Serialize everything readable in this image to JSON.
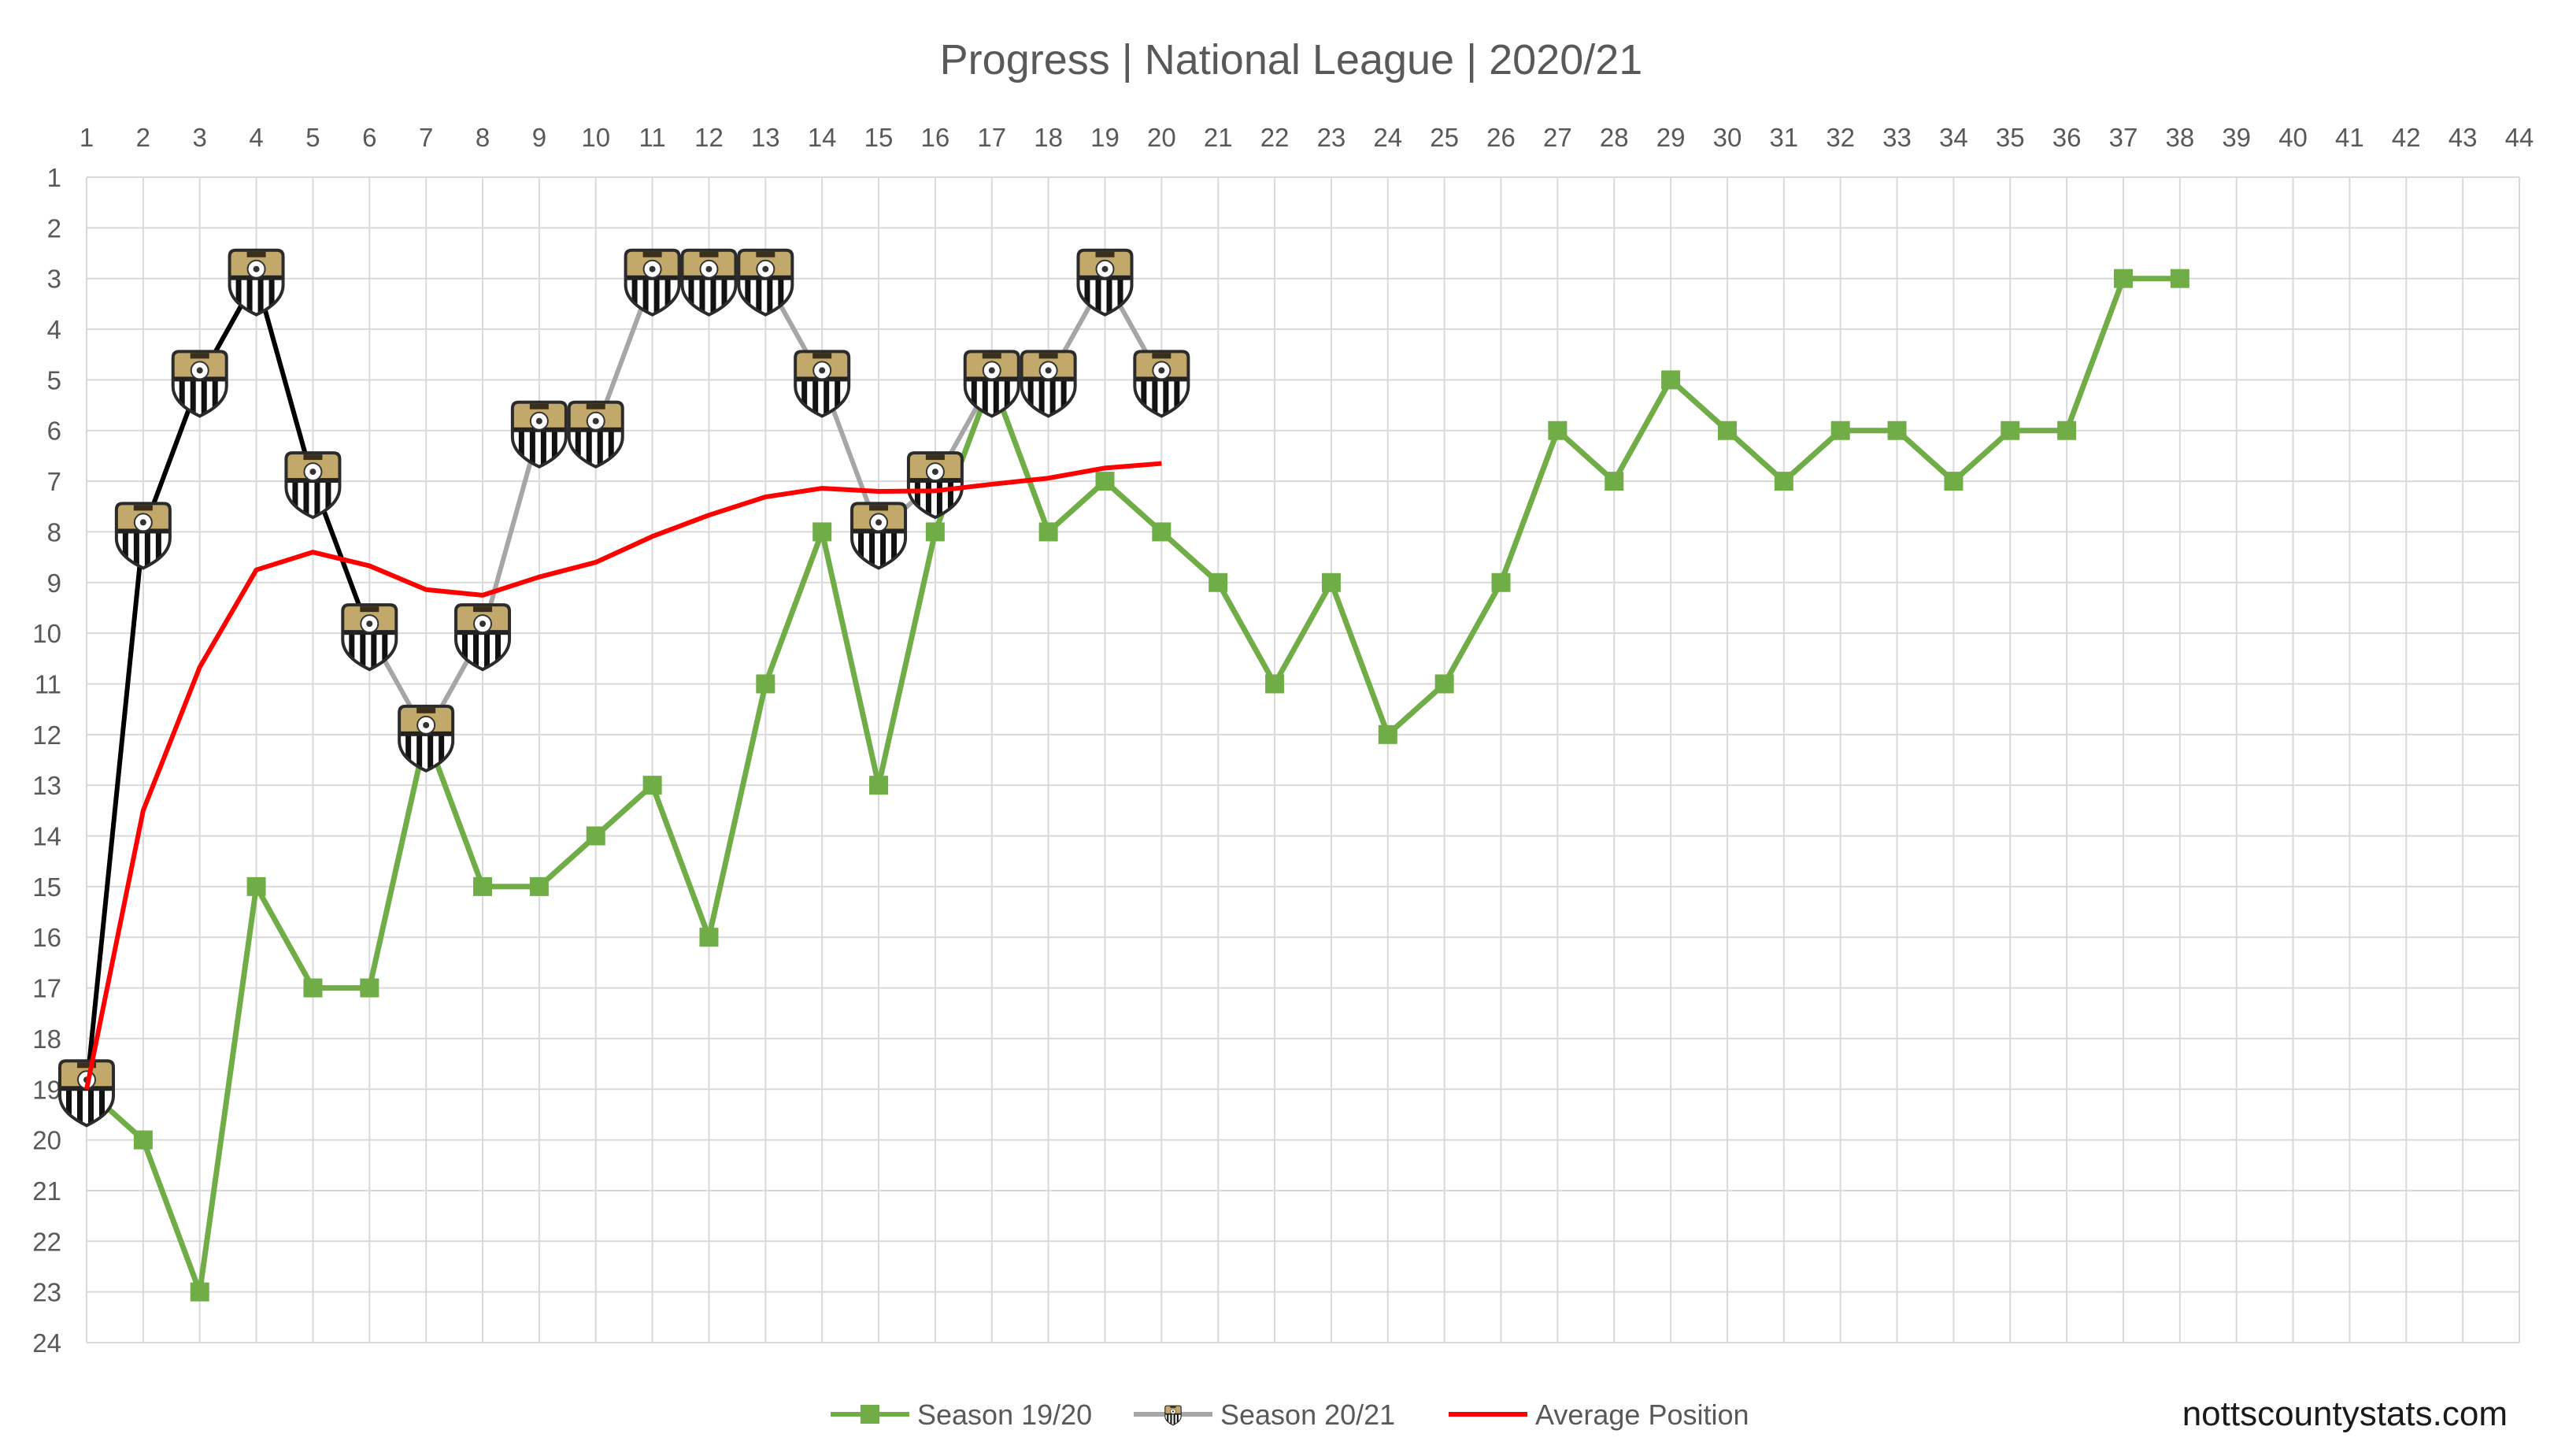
{
  "chart_data": {
    "type": "line",
    "title": "Progress | National League | 2020/21",
    "x_ticks": [
      1,
      2,
      3,
      4,
      5,
      6,
      7,
      8,
      9,
      10,
      11,
      12,
      13,
      14,
      15,
      16,
      17,
      18,
      19,
      20,
      21,
      22,
      23,
      24,
      25,
      26,
      27,
      28,
      29,
      30,
      31,
      32,
      33,
      34,
      35,
      36,
      37,
      38,
      39,
      40,
      41,
      42,
      43,
      44
    ],
    "y_ticks": [
      1,
      2,
      3,
      4,
      5,
      6,
      7,
      8,
      9,
      10,
      11,
      12,
      13,
      14,
      15,
      16,
      17,
      18,
      19,
      20,
      21,
      22,
      23,
      24
    ],
    "xlim": [
      1,
      44
    ],
    "ylim": [
      24,
      1
    ],
    "y_inverted": true,
    "grid": true,
    "legend_position": "bottom",
    "series": [
      {
        "name": "Season 19/20",
        "color": "#70ad47",
        "marker": "square",
        "x": [
          1,
          2,
          3,
          4,
          5,
          6,
          7,
          8,
          9,
          10,
          11,
          12,
          13,
          14,
          15,
          16,
          17,
          18,
          19,
          20,
          21,
          22,
          23,
          24,
          25,
          26,
          27,
          28,
          29,
          30,
          31,
          32,
          33,
          34,
          35,
          36,
          37,
          38
        ],
        "y": [
          19,
          20,
          23,
          15,
          17,
          17,
          12,
          15,
          15,
          14,
          13,
          16,
          11,
          8,
          13,
          8,
          5,
          8,
          7,
          8,
          9,
          11,
          9,
          12,
          11,
          9,
          6,
          7,
          5,
          6,
          7,
          6,
          6,
          7,
          6,
          6,
          3,
          3
        ]
      },
      {
        "name": "Season 20/21",
        "color": "#a6a6a6",
        "early_color": "#000000",
        "early_until_index": 5,
        "marker": "crest-icon",
        "x": [
          1,
          2,
          3,
          4,
          5,
          6,
          7,
          8,
          9,
          10,
          11,
          12,
          13,
          14,
          15,
          16,
          17,
          18,
          19,
          20
        ],
        "y": [
          19,
          8,
          5,
          3,
          7,
          10,
          12,
          10,
          6,
          6,
          3,
          3,
          3,
          5,
          8,
          7,
          5,
          5,
          3,
          5
        ]
      },
      {
        "name": "Average Position",
        "color": "#ff0000",
        "marker": "none",
        "x": [
          1,
          2,
          3,
          4,
          5,
          6,
          7,
          8,
          9,
          10,
          11,
          12,
          13,
          14,
          15,
          16,
          17,
          18,
          19,
          20
        ],
        "y": [
          19,
          13.5,
          10.67,
          8.75,
          8.4,
          8.67,
          9.14,
          9.25,
          8.89,
          8.6,
          8.09,
          7.67,
          7.31,
          7.14,
          7.2,
          7.19,
          7.06,
          6.94,
          6.74,
          6.65
        ]
      }
    ]
  },
  "footer": {
    "site": "nottscountystats.com"
  }
}
